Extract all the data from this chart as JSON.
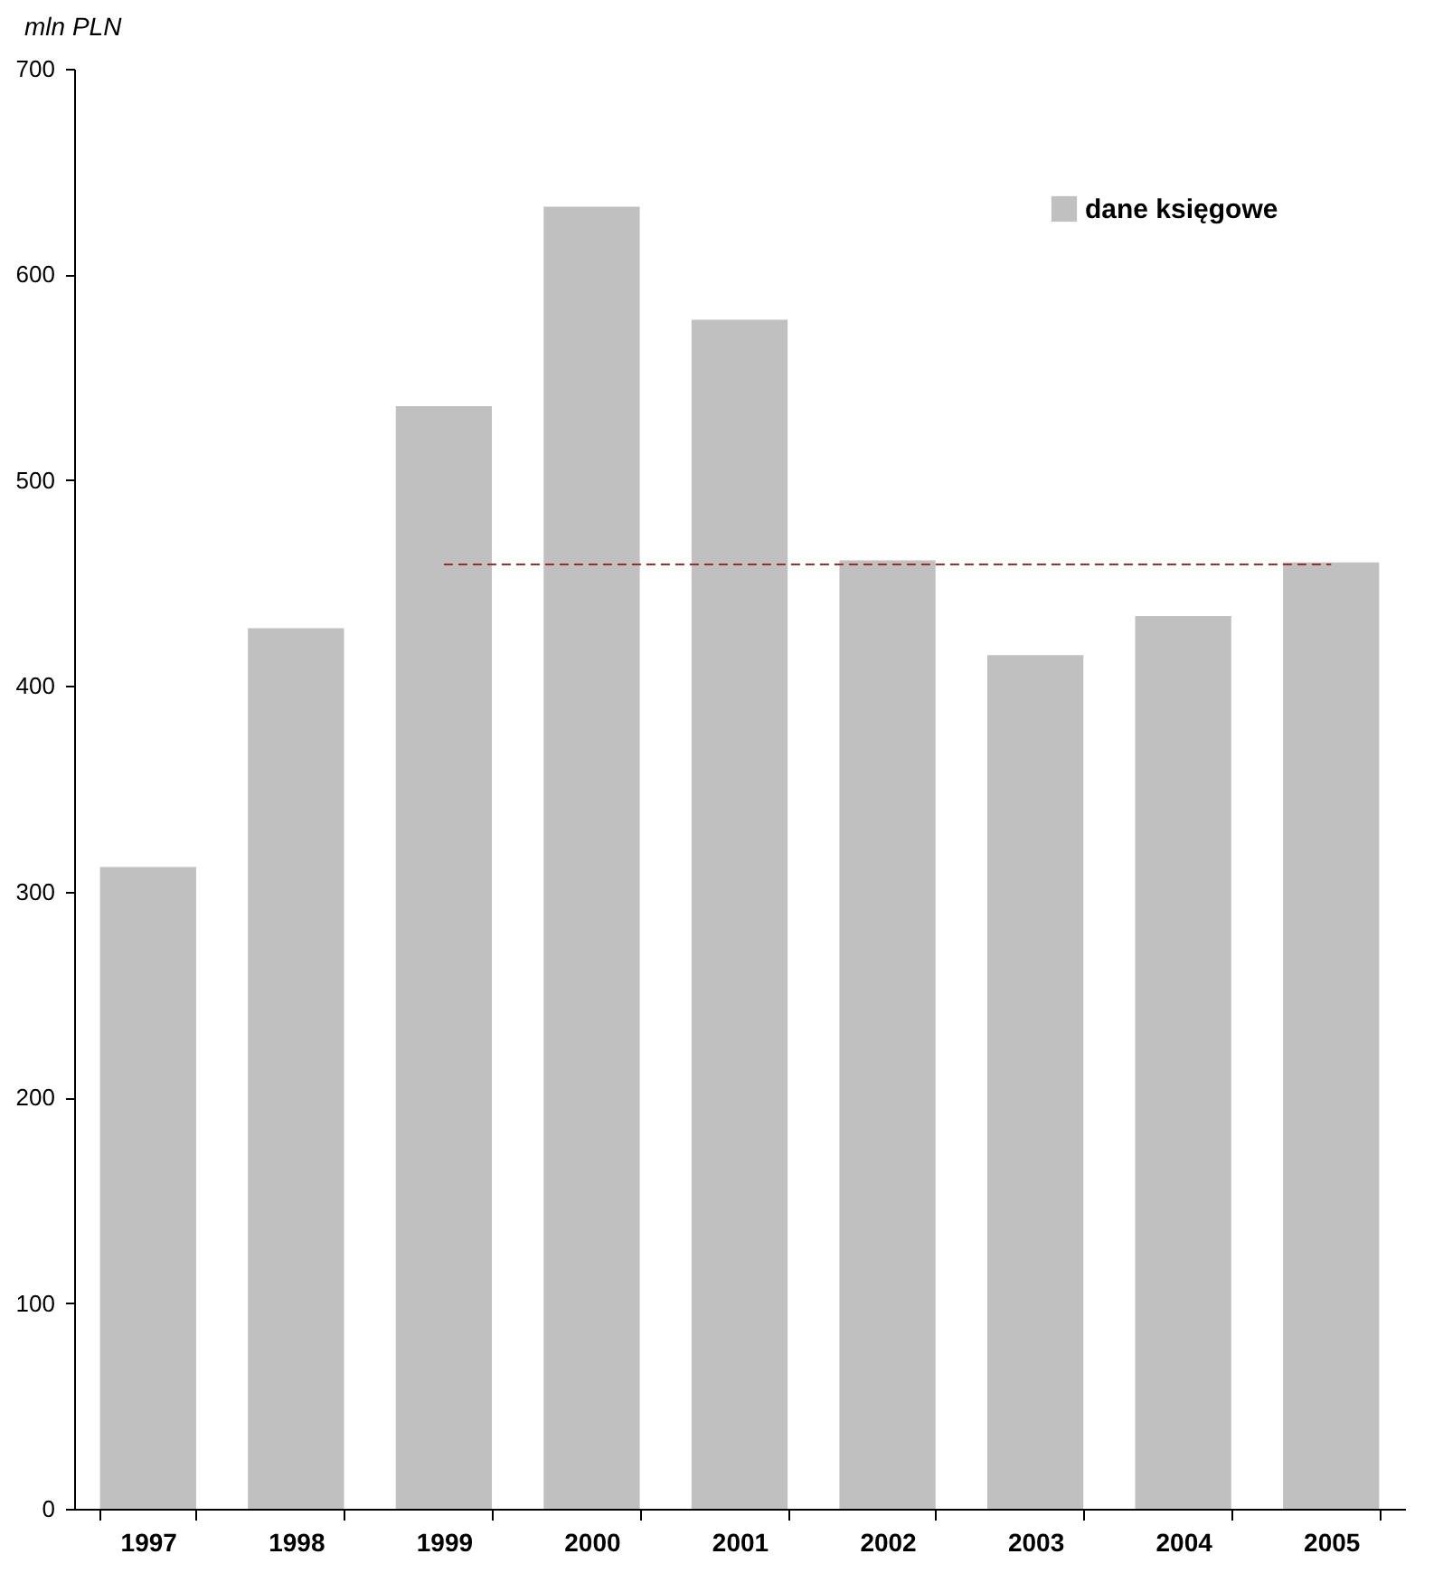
{
  "chart_data": {
    "type": "bar",
    "ylabel": "mln PLN",
    "categories": [
      "1997",
      "1998",
      "1999",
      "2000",
      "2001",
      "2002",
      "2003",
      "2004",
      "2005"
    ],
    "series": [
      {
        "name": "dane księgowe",
        "color": "#c0c0c0",
        "values": [
          312,
          428,
          536,
          633,
          578,
          461,
          415,
          434,
          460
        ]
      },
      {
        "type": "line",
        "color": "#a52a2a",
        "line_style": "dashed",
        "values": [
          null,
          null,
          459,
          459,
          459,
          459,
          459,
          459,
          459
        ]
      }
    ],
    "ylim": [
      0,
      700
    ],
    "yticks": [
      0,
      100,
      200,
      300,
      400,
      500,
      600,
      700
    ],
    "grid": false,
    "legend": "top right",
    "marker": "none"
  }
}
